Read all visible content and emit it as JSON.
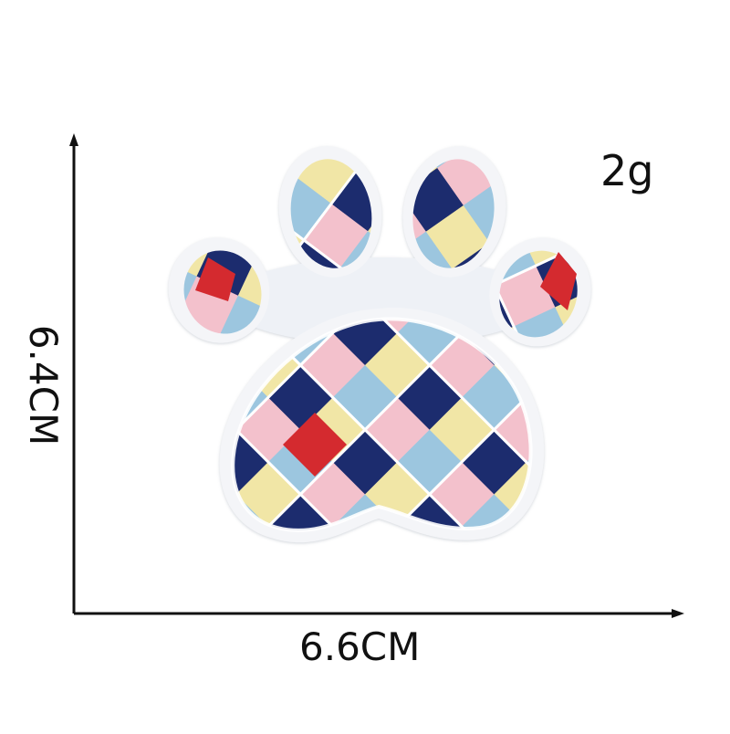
{
  "labels": {
    "weight": "2g",
    "width": "6.6CM",
    "height": "6.4CM"
  },
  "colors": {
    "background": "#ffffff",
    "axis": "#111111",
    "patch_base": "#f4f5f8",
    "plaid": {
      "light_blue": "#9cc6df",
      "navy": "#1c2c6e",
      "red": "#d42a2f",
      "pink": "#f3c1cc",
      "yellow": "#f1e6a6",
      "white": "#ffffff"
    }
  },
  "patch": {
    "subject": "embroidered-paw-print-patch",
    "pattern": "argyle-diamond-plaid"
  }
}
